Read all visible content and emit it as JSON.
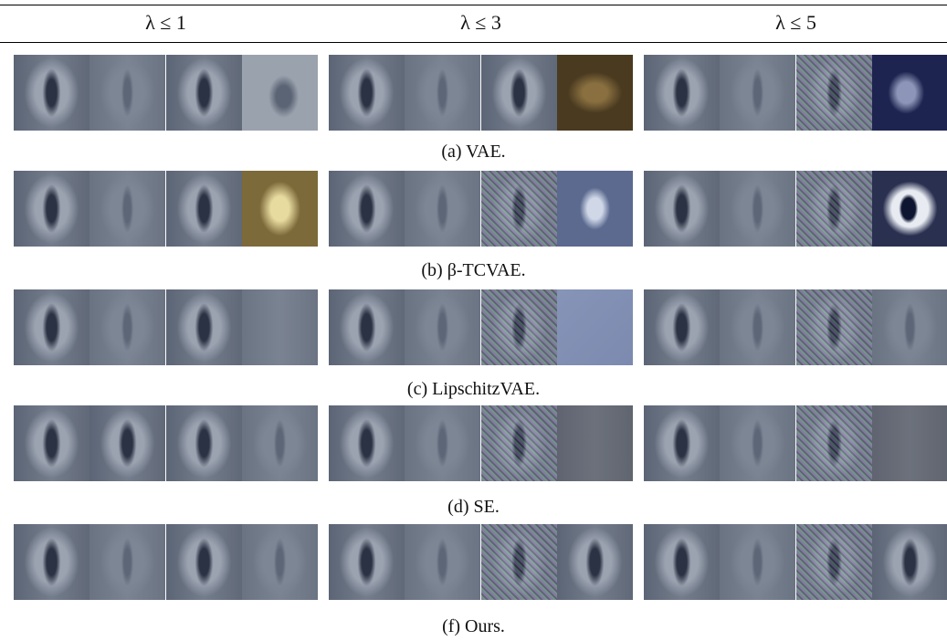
{
  "header": [
    "λ ≤ 1",
    "λ ≤ 3",
    "λ ≤ 5"
  ],
  "captions": [
    "(a) VAE.",
    "(b) β-TCVAE.",
    "(c) LipschitzVAE.",
    "(d) SE.",
    "(f) Ours."
  ]
}
